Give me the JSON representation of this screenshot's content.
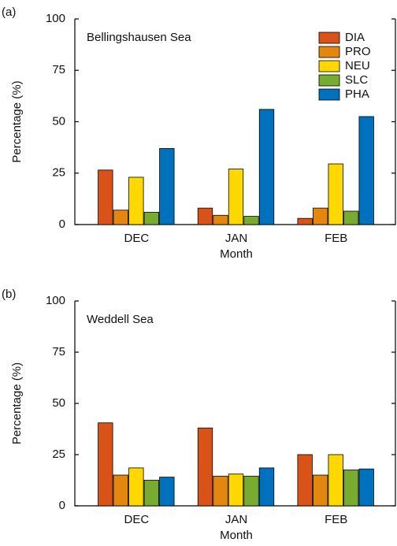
{
  "chart_data": [
    {
      "type": "bar",
      "label": "(a)",
      "title": "Bellingshausen Sea",
      "ylabel": "Percentage (%)",
      "xlabel": "Month",
      "categories": [
        "DEC",
        "JAN",
        "FEB"
      ],
      "ylim": [
        0,
        100
      ],
      "yticks": [
        0,
        25,
        50,
        75,
        100
      ],
      "legend": "upper right",
      "series": [
        {
          "name": "DIA",
          "color": "#d95319",
          "values": [
            26.5,
            8,
            3
          ]
        },
        {
          "name": "PRO",
          "color": "#e3870f",
          "values": [
            7,
            4.5,
            8
          ]
        },
        {
          "name": "NEU",
          "color": "#ffd800",
          "values": [
            23,
            27,
            29.5
          ]
        },
        {
          "name": "SLC",
          "color": "#77ac30",
          "values": [
            6,
            4,
            6.5
          ]
        },
        {
          "name": "PHA",
          "color": "#0072bd",
          "values": [
            37,
            56,
            52.5
          ]
        }
      ]
    },
    {
      "type": "bar",
      "label": "(b)",
      "title": "Weddell Sea",
      "ylabel": "Percentage (%)",
      "xlabel": "Month",
      "categories": [
        "DEC",
        "JAN",
        "FEB"
      ],
      "ylim": [
        0,
        100
      ],
      "yticks": [
        0,
        25,
        50,
        75,
        100
      ],
      "series": [
        {
          "color": "#d95319",
          "values": [
            40.5,
            38,
            25
          ]
        },
        {
          "color": "#e3870f",
          "values": [
            15,
            14.5,
            15
          ]
        },
        {
          "color": "#ffd800",
          "values": [
            18.5,
            15.5,
            25
          ]
        },
        {
          "color": "#77ac30",
          "values": [
            12.5,
            14.5,
            17.5
          ]
        },
        {
          "color": "#0072bd",
          "values": [
            14,
            18.5,
            18
          ]
        }
      ]
    }
  ]
}
